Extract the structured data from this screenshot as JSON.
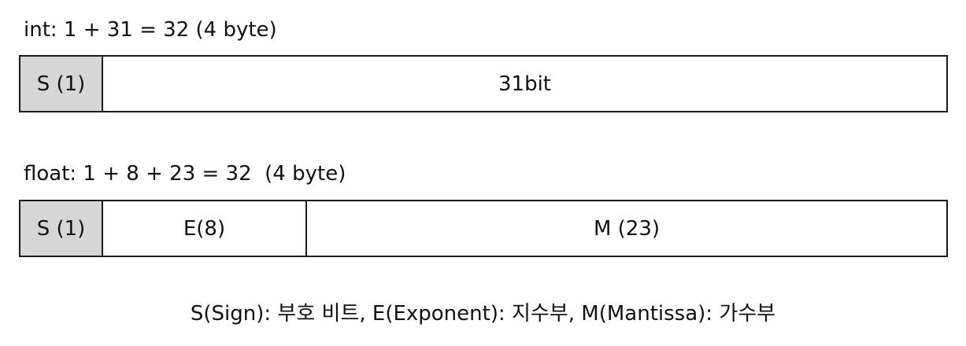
{
  "int_section": {
    "title": "int: 1 + 31 = 32 (4 byte)",
    "cells": {
      "sign": "S (1)",
      "value": "31bit"
    }
  },
  "float_section": {
    "title": "float: 1 + 8 + 23 = 32  (4 byte)",
    "cells": {
      "sign": "S (1)",
      "exponent": "E(8)",
      "mantissa": "M (23)"
    }
  },
  "legend": "S(Sign): 부호 비트, E(Exponent): 지수부, M(Mantissa): 가수부",
  "colors": {
    "sign_fill": "#d6d6d6",
    "border": "#1a1a1a"
  }
}
